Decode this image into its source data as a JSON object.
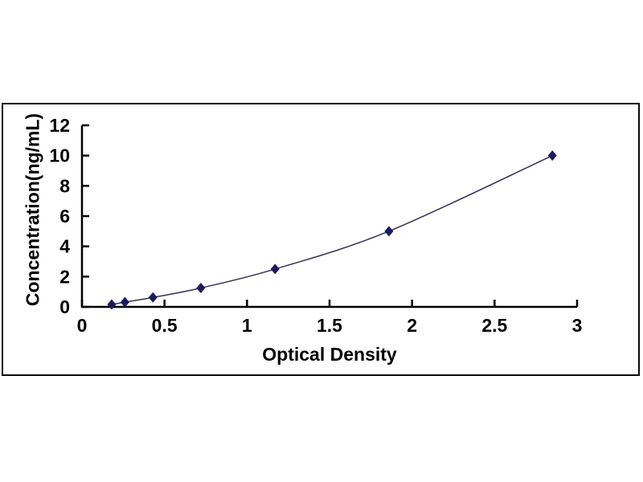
{
  "figure": {
    "background": "#ffffff",
    "frame_border_color": "#0a0a0a"
  },
  "chart_data": {
    "type": "line",
    "title": "",
    "xlabel": "Optical Density",
    "ylabel": "Concentration(ng/mL)",
    "xlim": [
      0,
      3
    ],
    "ylim": [
      0,
      12
    ],
    "x_ticks": [
      0,
      0.5,
      1,
      1.5,
      2,
      2.5,
      3
    ],
    "y_ticks": [
      0,
      2,
      4,
      6,
      8,
      10,
      12
    ],
    "grid": false,
    "legend": "none",
    "marker": "diamond",
    "colors": {
      "axis": "#000000",
      "tick_text": "#000000",
      "line": "#32325a",
      "marker": "#1a1a5e"
    },
    "points": [
      {
        "x": 0.18,
        "y": 0.156
      },
      {
        "x": 0.26,
        "y": 0.312
      },
      {
        "x": 0.43,
        "y": 0.625
      },
      {
        "x": 0.72,
        "y": 1.25
      },
      {
        "x": 1.17,
        "y": 2.5
      },
      {
        "x": 1.86,
        "y": 5
      },
      {
        "x": 2.85,
        "y": 10
      }
    ]
  }
}
